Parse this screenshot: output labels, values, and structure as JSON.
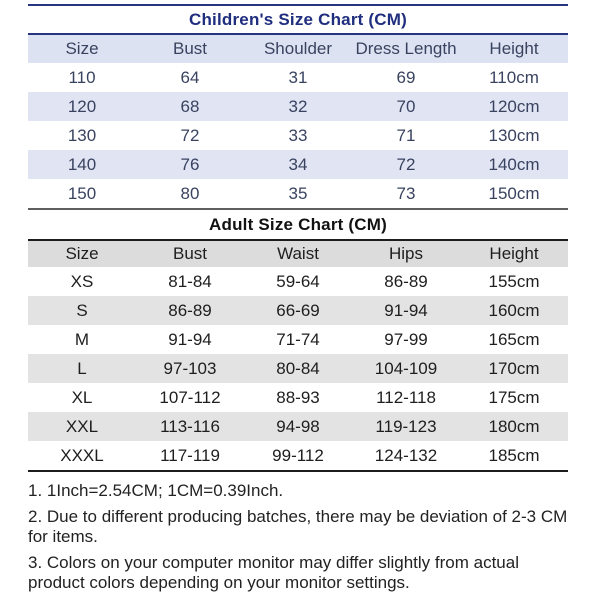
{
  "children_chart": {
    "title": "Children's Size Chart (CM)",
    "columns": [
      "Size",
      "Bust",
      "Shoulder",
      "Dress Length",
      "Height"
    ],
    "rows": [
      [
        "110",
        "64",
        "31",
        "69",
        "110cm"
      ],
      [
        "120",
        "68",
        "32",
        "70",
        "120cm"
      ],
      [
        "130",
        "72",
        "33",
        "71",
        "130cm"
      ],
      [
        "140",
        "76",
        "34",
        "72",
        "140cm"
      ],
      [
        "150",
        "80",
        "35",
        "73",
        "150cm"
      ]
    ],
    "colors": {
      "title_text": "#1f2e7e",
      "rule": "#27357f",
      "header_bg": "#dce2f1",
      "alt_row_bg": "#e0e4f3",
      "cell_text": "#394360"
    }
  },
  "adult_chart": {
    "title": "Adult Size Chart (CM)",
    "columns": [
      "Size",
      "Bust",
      "Waist",
      "Hips",
      "Height"
    ],
    "rows": [
      [
        "XS",
        "81-84",
        "59-64",
        "86-89",
        "155cm"
      ],
      [
        "S",
        "86-89",
        "66-69",
        "91-94",
        "160cm"
      ],
      [
        "M",
        "91-94",
        "71-74",
        "97-99",
        "165cm"
      ],
      [
        "L",
        "97-103",
        "80-84",
        "104-109",
        "170cm"
      ],
      [
        "XL",
        "107-112",
        "88-93",
        "112-118",
        "175cm"
      ],
      [
        "XXL",
        "113-116",
        "94-98",
        "119-123",
        "180cm"
      ],
      [
        "XXXL",
        "117-119",
        "99-112",
        "124-132",
        "185cm"
      ]
    ],
    "colors": {
      "title_text": "#111111",
      "rule_top": "#5f5f5f",
      "rule": "#1c1c1c",
      "header_bg": "#dcdcdc",
      "alt_row_bg": "#e3e3e3",
      "cell_text": "#1e1e1e"
    }
  },
  "notes": [
    "1. 1Inch=2.54CM; 1CM=0.39Inch.",
    "2. Due to different producing batches, there may be deviation of 2-3 CM for items.",
    "3. Colors on your computer monitor may differ slightly from actual product colors depending on your monitor settings."
  ],
  "chart_data": [
    {
      "type": "table",
      "title": "Children's Size Chart (CM)",
      "columns": [
        "Size",
        "Bust",
        "Shoulder",
        "Dress Length",
        "Height"
      ],
      "rows": [
        [
          "110",
          "64",
          "31",
          "69",
          "110cm"
        ],
        [
          "120",
          "68",
          "32",
          "70",
          "120cm"
        ],
        [
          "130",
          "72",
          "33",
          "71",
          "130cm"
        ],
        [
          "140",
          "76",
          "34",
          "72",
          "140cm"
        ],
        [
          "150",
          "80",
          "35",
          "73",
          "150cm"
        ]
      ]
    },
    {
      "type": "table",
      "title": "Adult Size Chart (CM)",
      "columns": [
        "Size",
        "Bust",
        "Waist",
        "Hips",
        "Height"
      ],
      "rows": [
        [
          "XS",
          "81-84",
          "59-64",
          "86-89",
          "155cm"
        ],
        [
          "S",
          "86-89",
          "66-69",
          "91-94",
          "160cm"
        ],
        [
          "M",
          "91-94",
          "71-74",
          "97-99",
          "165cm"
        ],
        [
          "L",
          "97-103",
          "80-84",
          "104-109",
          "170cm"
        ],
        [
          "XL",
          "107-112",
          "88-93",
          "112-118",
          "175cm"
        ],
        [
          "XXL",
          "113-116",
          "94-98",
          "119-123",
          "180cm"
        ],
        [
          "XXXL",
          "117-119",
          "99-112",
          "124-132",
          "185cm"
        ]
      ]
    }
  ]
}
